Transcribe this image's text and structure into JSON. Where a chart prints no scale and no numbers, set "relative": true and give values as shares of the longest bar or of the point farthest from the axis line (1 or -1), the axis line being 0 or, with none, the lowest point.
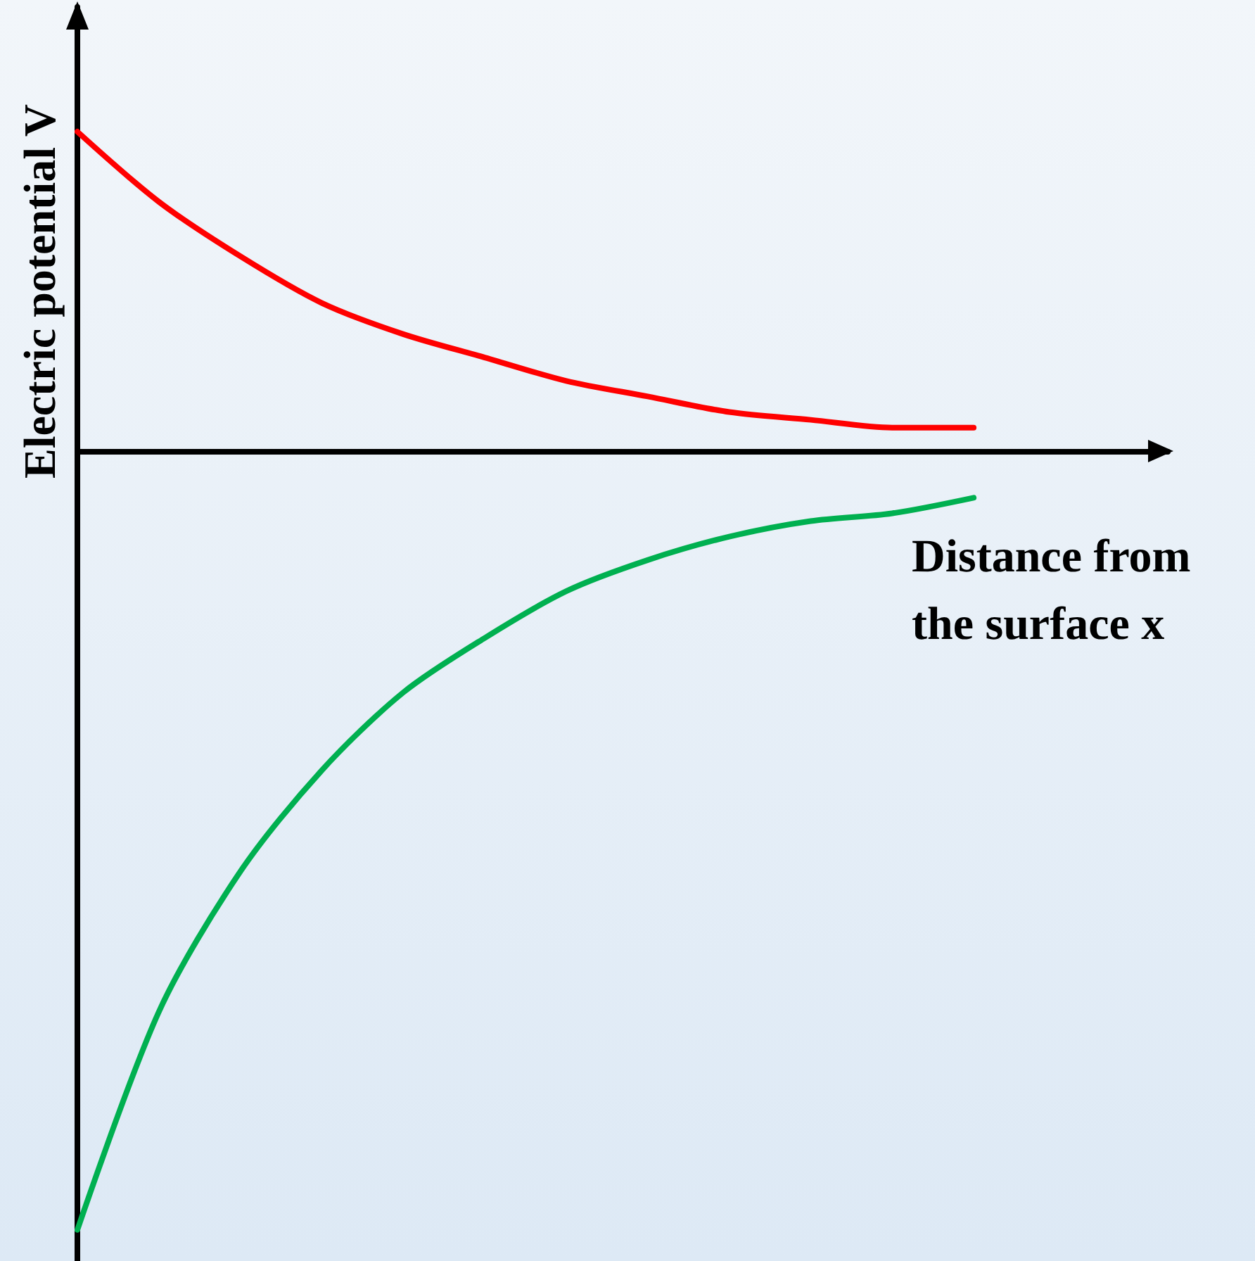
{
  "chart_data": {
    "type": "line",
    "relative": true,
    "xlabel": "Distance from the surface x",
    "ylabel": "Electric potential V",
    "categories": [
      null,
      null,
      null,
      null,
      null,
      null,
      null,
      null,
      null,
      null,
      null,
      null
    ],
    "series": [
      {
        "color": "#ff0000",
        "values": [
          0.41,
          0.32,
          0.25,
          0.19,
          0.15,
          0.12,
          0.09,
          0.07,
          0.05,
          0.04,
          0.03,
          0.03
        ]
      },
      {
        "color": "#00b050",
        "values": [
          -1,
          -0.72,
          -0.54,
          -0.41,
          -0.31,
          -0.24,
          -0.18,
          -0.14,
          -0.11,
          -0.09,
          -0.08,
          -0.06
        ]
      }
    ]
  }
}
